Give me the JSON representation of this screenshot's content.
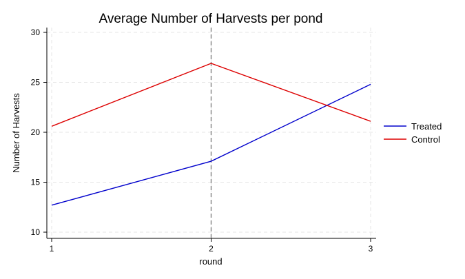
{
  "chart_data": {
    "type": "line",
    "title": "Average Number of Harvests per pond",
    "xlabel": "round",
    "ylabel": "Number of Harvests",
    "x": [
      1,
      2,
      3
    ],
    "x_ticks": [
      "1",
      "2",
      "3"
    ],
    "y_ticks": [
      "10",
      "15",
      "20",
      "25",
      "30"
    ],
    "xlim": [
      1,
      3
    ],
    "ylim": [
      10,
      30
    ],
    "grid": true,
    "reference_line": {
      "x": 2,
      "style": "dashed",
      "color": "#808080"
    },
    "legend_position": "right",
    "series": [
      {
        "name": "Treated",
        "color": "#0000cc",
        "values": [
          12.7,
          17.1,
          24.8
        ]
      },
      {
        "name": "Control",
        "color": "#dd0000",
        "values": [
          20.6,
          26.9,
          21.1
        ]
      }
    ]
  }
}
